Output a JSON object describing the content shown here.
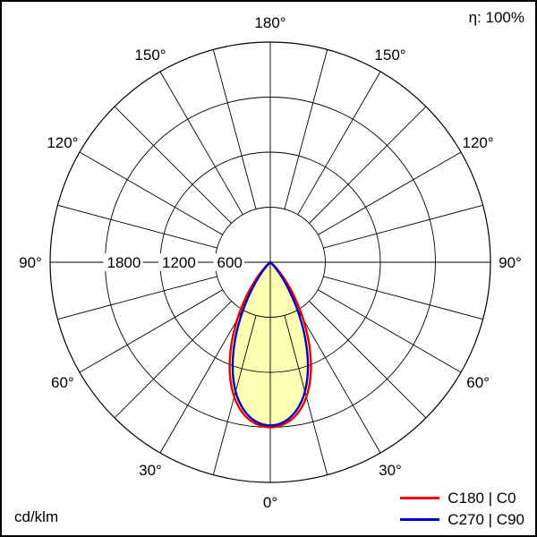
{
  "chart_data": {
    "type": "polar",
    "unit": "cd/klm",
    "efficiency": "η: 100%",
    "r_max": 2400,
    "rings": [
      600,
      1200,
      1800,
      2400
    ],
    "ring_labels": [
      1800,
      1200,
      600
    ],
    "angle_step_deg": 15,
    "angle_labels": [
      0,
      30,
      60,
      90,
      120,
      150,
      180
    ],
    "fill_color": "#FFFFB3",
    "gamma_deg": [
      0,
      5,
      10,
      15,
      20,
      25,
      30,
      35,
      40,
      45,
      50,
      55,
      60
    ],
    "series": [
      {
        "name": "C180 | C0",
        "color": "#EE0000",
        "values": [
          1800,
          1770,
          1680,
          1520,
          1290,
          1010,
          720,
          455,
          245,
          105,
          35,
          8,
          0
        ]
      },
      {
        "name": "C270 | C90",
        "color": "#0000CC",
        "values": [
          1780,
          1745,
          1640,
          1460,
          1200,
          890,
          580,
          320,
          140,
          45,
          8,
          0,
          0
        ]
      }
    ]
  }
}
